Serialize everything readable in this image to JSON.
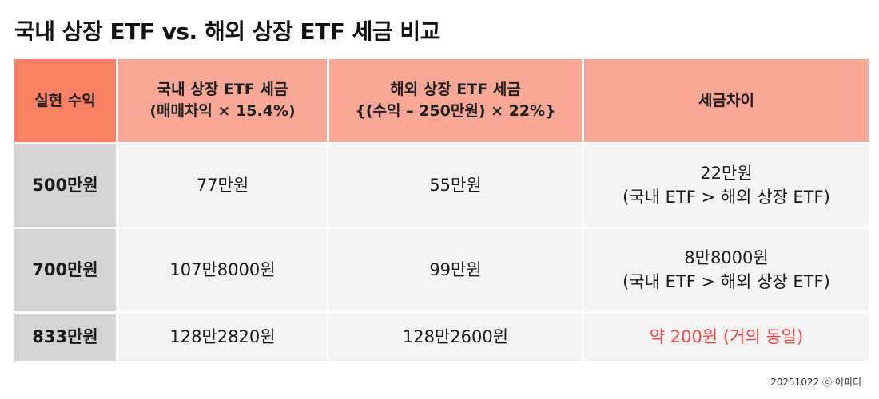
{
  "title": "국내 상장 ETF vs. 해외 상장 ETF 세금 비교",
  "table": {
    "headers": [
      {
        "lines": [
          "실현 수익"
        ]
      },
      {
        "lines": [
          "국내 상장 ETF 세금",
          "(매매차익 × 15.4%)"
        ]
      },
      {
        "lines": [
          "해외 상장 ETF 세금",
          "{(수익 – 250만원) × 22%}"
        ]
      },
      {
        "lines": [
          "세금차이"
        ]
      }
    ],
    "rows": [
      {
        "gain": "500만원",
        "domestic": "77만원",
        "overseas": "55만원",
        "diff": [
          "22만원",
          "(국내 ETF > 해외 상장 ETF)"
        ]
      },
      {
        "gain": "700만원",
        "domestic": "107만8000원",
        "overseas": "99만원",
        "diff": [
          "8만8000원",
          "(국내 ETF > 해외 상장 ETF)"
        ]
      },
      {
        "gain": "833만원",
        "domestic": "128만2820원",
        "overseas": "128만2600원",
        "diff": [
          "약 200원 (거의 동일)"
        ]
      }
    ]
  },
  "footer": {
    "date": "20251022",
    "copyright_symbol": "ⓒ",
    "brand": "어피티"
  },
  "colors": {
    "header_first": "#fb7f62",
    "header": "#f9a897",
    "row_label": "#d4d4d4",
    "body": "#f4f4f4",
    "highlight": "#f04848"
  }
}
